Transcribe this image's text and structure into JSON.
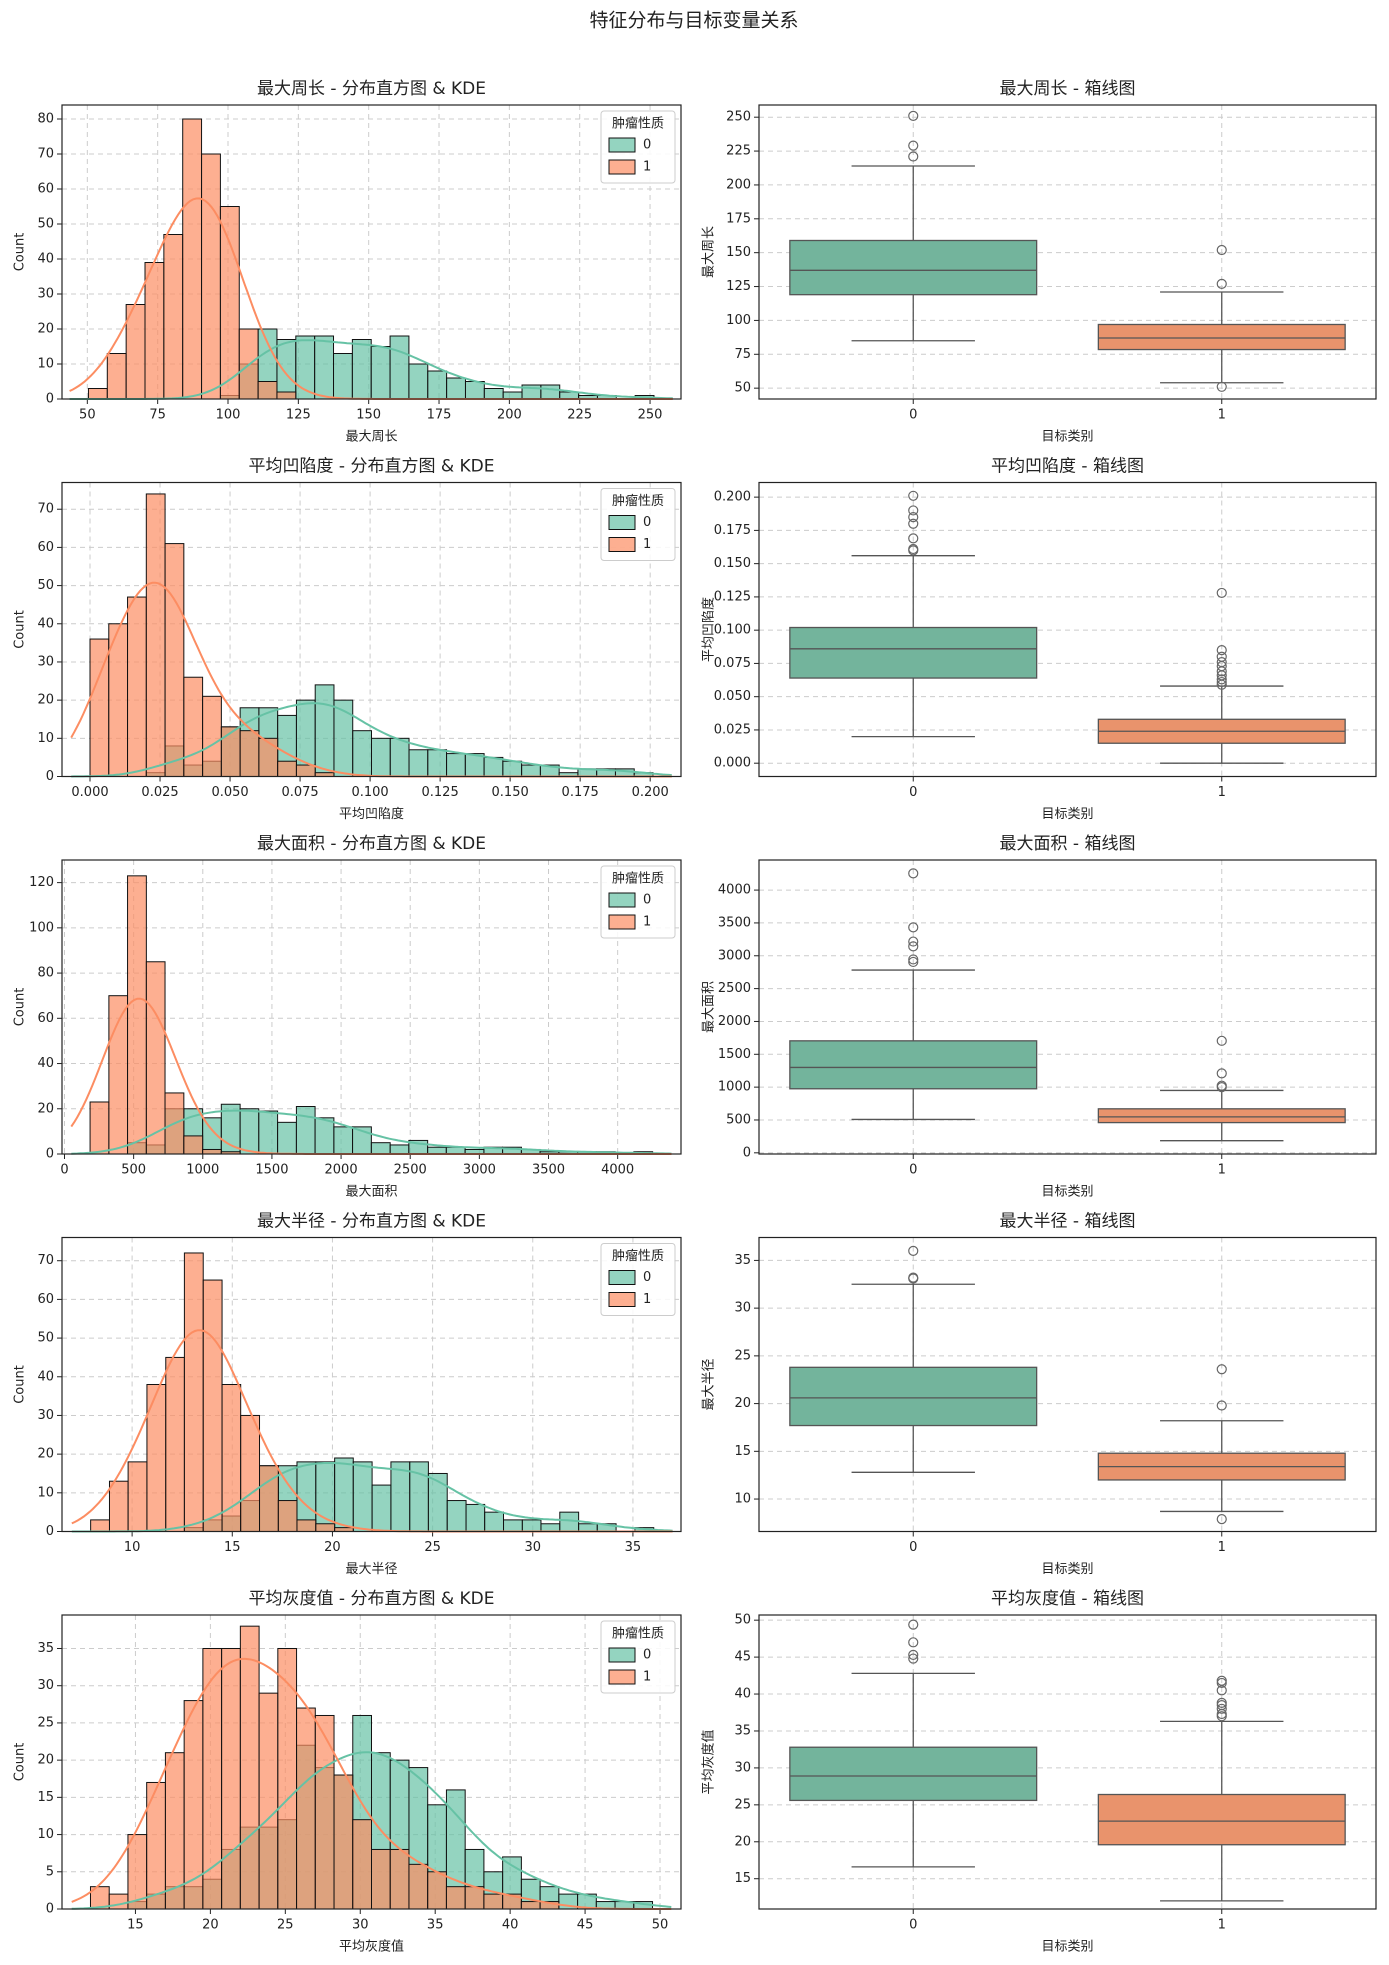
{
  "title": "特征分布与目标变量关系",
  "chart_data": [
    {
      "type": "histogram",
      "title": "最大周长 - 分布直方图 & KDE",
      "xlabel": "最大周长",
      "ylabel": "Count",
      "legend_title": "肿瘤性质",
      "legend": "upper right",
      "grid": true,
      "xlim": [
        41,
        261
      ],
      "xticks": [
        50,
        75,
        100,
        125,
        150,
        175,
        200,
        225,
        250
      ],
      "ylim": [
        0,
        84
      ],
      "yticks": [
        0,
        10,
        20,
        30,
        40,
        50,
        60,
        70,
        80
      ],
      "bins": [
        50.4,
        57.1,
        63.8,
        70.5,
        77.2,
        83.9,
        90.6,
        97.3,
        104,
        110.7,
        117.4,
        124.1,
        130.8,
        137.5,
        144.2,
        150.9,
        157.6,
        164.3,
        171,
        177.7,
        184.4,
        191.1,
        197.8,
        204.5,
        211.2,
        217.9,
        224.6,
        231.3,
        238,
        244.7,
        251.4
      ],
      "series": [
        {
          "name": "0",
          "color": "#66c2a5",
          "values": [
            0,
            0,
            0,
            0,
            0,
            0,
            0,
            1,
            10,
            20,
            17,
            18,
            18,
            13,
            17,
            15,
            18,
            10,
            8,
            6,
            5,
            3,
            2,
            4,
            4,
            2,
            1,
            1,
            0,
            1
          ]
        },
        {
          "name": "1",
          "color": "#fc8d62",
          "values": [
            3,
            13,
            27,
            39,
            47,
            80,
            70,
            55,
            20,
            5,
            2,
            0,
            0,
            0,
            0,
            0,
            0,
            0,
            0,
            0,
            0,
            0,
            0,
            0,
            0,
            0,
            0,
            0,
            0,
            0
          ]
        }
      ]
    },
    {
      "type": "box",
      "title": "最大周长 - 箱线图",
      "xlabel": "目标类别",
      "ylabel": "最大周长",
      "grid": true,
      "categories": [
        "0",
        "1"
      ],
      "ylim": [
        42,
        259
      ],
      "yticks": [
        50,
        75,
        100,
        125,
        150,
        175,
        200,
        225,
        250
      ],
      "boxes": [
        {
          "color": "#73b49c",
          "q1": 119,
          "median": 137,
          "q3": 159,
          "whislo": 85,
          "whishi": 214,
          "fliers": [
            221,
            229,
            251
          ]
        },
        {
          "color": "#e9936c",
          "q1": 78.5,
          "median": 87,
          "q3": 97,
          "whislo": 54,
          "whishi": 121,
          "fliers": [
            51,
            127,
            152
          ]
        }
      ]
    },
    {
      "type": "histogram",
      "title": "平均凹陷度 - 分布直方图 & KDE",
      "xlabel": "平均凹陷度",
      "ylabel": "Count",
      "legend_title": "肿瘤性质",
      "legend": "upper right",
      "grid": true,
      "xlim": [
        -0.01,
        0.211
      ],
      "xticks": [
        {
          "value": 0,
          "label": "0.000"
        },
        {
          "value": 0.025,
          "label": "0.025"
        },
        {
          "value": 0.05,
          "label": "0.050"
        },
        {
          "value": 0.075,
          "label": "0.075"
        },
        {
          "value": 0.1,
          "label": "0.100"
        },
        {
          "value": 0.125,
          "label": "0.125"
        },
        {
          "value": 0.15,
          "label": "0.150"
        },
        {
          "value": 0.175,
          "label": "0.175"
        },
        {
          "value": 0.2,
          "label": "0.200"
        }
      ],
      "ylim": [
        0,
        77
      ],
      "yticks": [
        0,
        10,
        20,
        30,
        40,
        50,
        60,
        70
      ],
      "bins": [
        0,
        0.0067,
        0.0134,
        0.0201,
        0.0268,
        0.0335,
        0.0402,
        0.0469,
        0.0536,
        0.0603,
        0.067,
        0.0737,
        0.0804,
        0.0871,
        0.0938,
        0.1005,
        0.1072,
        0.1139,
        0.1206,
        0.1273,
        0.134,
        0.1407,
        0.1474,
        0.1541,
        0.1608,
        0.1675,
        0.1742,
        0.1809,
        0.1876,
        0.1943,
        0.201
      ],
      "series": [
        {
          "name": "0",
          "color": "#66c2a5",
          "values": [
            0,
            0,
            0,
            1,
            8,
            3,
            4,
            13,
            18,
            18,
            16,
            20,
            24,
            20,
            12,
            10,
            10,
            7,
            7,
            6,
            6,
            5,
            4,
            3,
            3,
            1,
            2,
            2,
            2,
            1
          ]
        },
        {
          "name": "1",
          "color": "#fc8d62",
          "values": [
            36,
            40,
            47,
            74,
            61,
            26,
            21,
            13,
            12,
            10,
            4,
            3,
            1,
            0,
            0,
            0,
            0,
            0,
            0,
            0,
            0,
            0,
            0,
            0,
            0,
            0,
            0,
            0,
            0,
            0
          ]
        }
      ]
    },
    {
      "type": "box",
      "title": "平均凹陷度 - 箱线图",
      "xlabel": "目标类别",
      "ylabel": "平均凹陷度",
      "grid": true,
      "categories": [
        "0",
        "1"
      ],
      "ylim": [
        -0.01,
        0.211
      ],
      "yticks": [
        {
          "value": 0,
          "label": "0.000"
        },
        {
          "value": 0.025,
          "label": "0.025"
        },
        {
          "value": 0.05,
          "label": "0.050"
        },
        {
          "value": 0.075,
          "label": "0.075"
        },
        {
          "value": 0.1,
          "label": "0.100"
        },
        {
          "value": 0.125,
          "label": "0.125"
        },
        {
          "value": 0.15,
          "label": "0.150"
        },
        {
          "value": 0.175,
          "label": "0.175"
        },
        {
          "value": 0.2,
          "label": "0.200"
        }
      ],
      "boxes": [
        {
          "color": "#73b49c",
          "q1": 0.064,
          "median": 0.086,
          "q3": 0.102,
          "whislo": 0.02,
          "whishi": 0.156,
          "fliers": [
            0.16,
            0.161,
            0.169,
            0.18,
            0.185,
            0.19,
            0.201
          ]
        },
        {
          "color": "#e9936c",
          "q1": 0.015,
          "median": 0.024,
          "q3": 0.033,
          "whislo": 0,
          "whishi": 0.058,
          "fliers": [
            0.059,
            0.061,
            0.063,
            0.066,
            0.069,
            0.073,
            0.076,
            0.08,
            0.085,
            0.128
          ]
        }
      ]
    },
    {
      "type": "histogram",
      "title": "最大面积 - 分布直方图 & KDE",
      "xlabel": "最大面积",
      "ylabel": "Count",
      "legend_title": "肿瘤性质",
      "legend": "upper right",
      "grid": true,
      "xlim": [
        -18,
        4458
      ],
      "xticks": [
        0,
        500,
        1000,
        1500,
        2000,
        2500,
        3000,
        3500,
        4000
      ],
      "ylim": [
        0,
        130
      ],
      "yticks": [
        0,
        20,
        40,
        60,
        80,
        100,
        120
      ],
      "bins": [
        185,
        321,
        456,
        592,
        727,
        863,
        999,
        1134,
        1270,
        1405,
        1541,
        1677,
        1812,
        1948,
        2083,
        2219,
        2355,
        2490,
        2626,
        2761,
        2897,
        3033,
        3168,
        3304,
        3439,
        3575,
        3711,
        3846,
        3982,
        4117,
        4253
      ],
      "series": [
        {
          "name": "0",
          "color": "#66c2a5",
          "values": [
            0,
            0,
            5,
            4,
            20,
            20,
            16,
            22,
            20,
            19,
            14,
            21,
            16,
            12,
            12,
            5,
            4,
            6,
            3,
            3,
            2,
            3,
            3,
            2,
            1,
            1,
            1,
            1,
            0,
            1
          ]
        },
        {
          "name": "1",
          "color": "#fc8d62",
          "values": [
            23,
            70,
            123,
            85,
            27,
            8,
            2,
            1,
            0,
            0,
            0,
            0,
            0,
            0,
            0,
            0,
            0,
            0,
            0,
            0,
            0,
            0,
            0,
            0,
            0,
            0,
            0,
            0,
            0,
            0
          ]
        }
      ]
    },
    {
      "type": "box",
      "title": "最大面积 - 箱线图",
      "xlabel": "目标类别",
      "ylabel": "最大面积",
      "grid": true,
      "categories": [
        "0",
        "1"
      ],
      "ylim": [
        -18,
        4458
      ],
      "yticks": [
        0,
        500,
        1000,
        1500,
        2000,
        2500,
        3000,
        3500,
        4000
      ],
      "boxes": [
        {
          "color": "#73b49c",
          "q1": 975,
          "median": 1300,
          "q3": 1705,
          "whislo": 508,
          "whishi": 2782,
          "fliers": [
            2906,
            2944,
            3143,
            3216,
            3432,
            4254
          ]
        },
        {
          "color": "#e9936c",
          "q1": 460,
          "median": 547,
          "q3": 670,
          "whislo": 185,
          "whishi": 950,
          "fliers": [
            1000,
            1022,
            1210,
            1705
          ]
        }
      ]
    },
    {
      "type": "histogram",
      "title": "最大半径 - 分布直方图 & KDE",
      "xlabel": "最大半径",
      "ylabel": "Count",
      "legend_title": "肿瘤性质",
      "legend": "upper right",
      "grid": true,
      "xlim": [
        6.5,
        37.4
      ],
      "xticks": [
        10,
        15,
        20,
        25,
        30,
        35
      ],
      "ylim": [
        0,
        76
      ],
      "yticks": [
        0,
        10,
        20,
        30,
        40,
        50,
        60,
        70
      ],
      "bins": [
        7.93,
        8.87,
        9.8,
        10.74,
        11.68,
        12.61,
        13.55,
        14.49,
        15.42,
        16.36,
        17.3,
        18.23,
        19.17,
        20.11,
        21.04,
        21.98,
        22.92,
        23.86,
        24.79,
        25.73,
        26.67,
        27.6,
        28.54,
        29.48,
        30.41,
        31.35,
        32.29,
        33.22,
        34.16,
        35.1,
        36.04
      ],
      "series": [
        {
          "name": "0",
          "color": "#66c2a5",
          "values": [
            0,
            0,
            0,
            0,
            0,
            1,
            3,
            4,
            8,
            17,
            17,
            18,
            18,
            19,
            18,
            12,
            18,
            18,
            15,
            8,
            7,
            5,
            3,
            3,
            2,
            5,
            2,
            2,
            0,
            1
          ]
        },
        {
          "name": "1",
          "color": "#fc8d62",
          "values": [
            3,
            13,
            18,
            38,
            45,
            72,
            65,
            38,
            30,
            17,
            8,
            3,
            2,
            1,
            0,
            0,
            0,
            0,
            0,
            0,
            0,
            0,
            0,
            0,
            0,
            0,
            0,
            0,
            0,
            0
          ]
        }
      ]
    },
    {
      "type": "box",
      "title": "最大半径 - 箱线图",
      "xlabel": "目标类别",
      "ylabel": "最大半径",
      "grid": true,
      "categories": [
        "0",
        "1"
      ],
      "ylim": [
        6.6,
        37.4
      ],
      "yticks": [
        10,
        15,
        20,
        25,
        30,
        35
      ],
      "boxes": [
        {
          "color": "#73b49c",
          "q1": 17.7,
          "median": 20.6,
          "q3": 23.8,
          "whislo": 12.8,
          "whishi": 32.5,
          "fliers": [
            33.1,
            33.2,
            36
          ]
        },
        {
          "color": "#e9936c",
          "q1": 12,
          "median": 13.4,
          "q3": 14.8,
          "whislo": 8.7,
          "whishi": 18.2,
          "fliers": [
            7.9,
            19.8,
            23.6
          ]
        }
      ]
    },
    {
      "type": "histogram",
      "title": "平均灰度值 - 分布直方图 & KDE",
      "xlabel": "平均灰度值",
      "ylabel": "Count",
      "legend_title": "肿瘤性质",
      "legend": "upper right",
      "grid": true,
      "xlim": [
        10.1,
        51.4
      ],
      "xticks": [
        15,
        20,
        25,
        30,
        35,
        40,
        45,
        50
      ],
      "ylim": [
        0,
        39.5
      ],
      "yticks": [
        0,
        5,
        10,
        15,
        20,
        25,
        30,
        35
      ],
      "bins": [
        12,
        13.25,
        14.5,
        15.75,
        17,
        18.25,
        19.5,
        20.75,
        22,
        23.25,
        24.5,
        25.75,
        27,
        28.25,
        29.5,
        30.75,
        32,
        33.25,
        34.5,
        35.75,
        37,
        38.25,
        39.5,
        40.75,
        42,
        43.25,
        44.5,
        45.75,
        47,
        48.25,
        49.5
      ],
      "series": [
        {
          "name": "0",
          "color": "#66c2a5",
          "values": [
            0,
            0,
            1,
            2,
            3,
            3,
            4,
            8,
            11,
            11,
            12,
            22,
            19,
            18,
            26,
            21,
            20,
            19,
            14,
            16,
            8,
            5,
            7,
            4,
            3,
            2,
            2,
            1,
            1,
            1
          ]
        },
        {
          "name": "1",
          "color": "#fc8d62",
          "values": [
            3,
            2,
            10,
            17,
            21,
            28,
            35,
            35,
            38,
            29,
            35,
            27,
            26,
            18,
            12,
            8,
            8,
            6,
            5,
            3,
            3,
            2,
            2,
            1,
            1,
            0,
            0,
            0,
            0,
            0
          ]
        }
      ]
    },
    {
      "type": "box",
      "title": "平均灰度值 - 箱线图",
      "xlabel": "目标类别",
      "ylabel": "平均灰度值",
      "grid": true,
      "categories": [
        "0",
        "1"
      ],
      "ylim": [
        10.9,
        50.7
      ],
      "yticks": [
        15,
        20,
        25,
        30,
        35,
        40,
        45,
        50
      ],
      "boxes": [
        {
          "color": "#73b49c",
          "q1": 25.6,
          "median": 28.9,
          "q3": 32.8,
          "whislo": 16.6,
          "whishi": 42.8,
          "fliers": [
            44.8,
            45.3,
            47,
            49.4
          ]
        },
        {
          "color": "#e9936c",
          "q1": 19.6,
          "median": 22.8,
          "q3": 26.4,
          "whislo": 12,
          "whishi": 36.3,
          "fliers": [
            37,
            37.3,
            38,
            38.5,
            38.8,
            40.5,
            41.5,
            41.8
          ]
        }
      ]
    }
  ]
}
